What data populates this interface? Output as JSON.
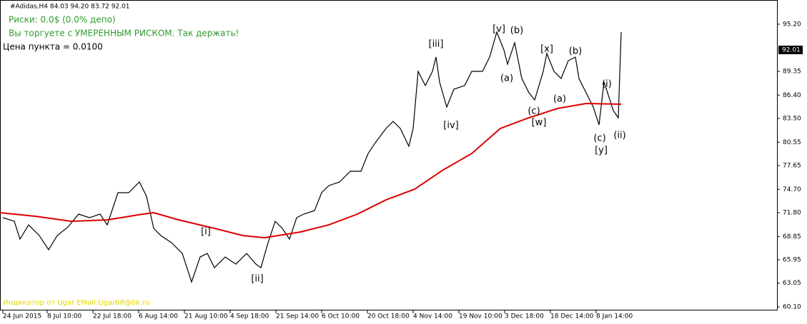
{
  "chart_data": {
    "type": "line",
    "title": "#Adidas,H4  84.03 94.20 83.72 92.01",
    "info_lines": [
      "Риски: 0.0$ (0.0% депо)",
      "Вы торгуете с УМЕРЕННЫМ РИСКОМ. Так держать!"
    ],
    "point_value_text": "Цена пункта = 0.0100",
    "footer_text": "Индикатор от Ugar EMail:Ugar68@bk.ru",
    "current_price": {
      "value": 92.01,
      "label": "92.01"
    },
    "annotations": [
      "[i]",
      "[ii]",
      "[iii]",
      "[iv]",
      "[v]",
      "(b)",
      "(a)",
      "(c)",
      "[w]",
      "[x]",
      "(a)",
      "(b)",
      "(c)",
      "[y]",
      "(i)",
      "(ii)"
    ],
    "xlim": [
      0,
      271.75
    ],
    "ylim": [
      59.66,
      98.21
    ],
    "xticks": [
      {
        "value": 1,
        "label": "24 Jun 2015"
      },
      {
        "value": 16.5,
        "label": "8 Jul 10:00"
      },
      {
        "value": 32.5,
        "label": "22 Jul 18:00"
      },
      {
        "value": 48.5,
        "label": "6 Aug 14:00"
      },
      {
        "value": 64.5,
        "label": "21 Aug 10:00"
      },
      {
        "value": 80.5,
        "label": "4 Sep 18:00"
      },
      {
        "value": 96.5,
        "label": "21 Sep 14:00"
      },
      {
        "value": 112.5,
        "label": "6 Oct 10:00"
      },
      {
        "value": 128.5,
        "label": "20 Oct 18:00"
      },
      {
        "value": 144.5,
        "label": "4 Nov 14:00"
      },
      {
        "value": 160.5,
        "label": "19 Nov 10:00"
      },
      {
        "value": 176.5,
        "label": "3 Dec 18:00"
      },
      {
        "value": 192.5,
        "label": "18 Dec 14:00"
      },
      {
        "value": 208.5,
        "label": "8 Jan 14:00"
      }
    ],
    "yticks": [
      {
        "value": 95.2,
        "label": "95.20"
      },
      {
        "value": 89.35,
        "label": "89.35"
      },
      {
        "value": 86.4,
        "label": "86.40"
      },
      {
        "value": 83.5,
        "label": "83.50"
      },
      {
        "value": 80.55,
        "label": "80.55"
      },
      {
        "value": 77.65,
        "label": "77.65"
      },
      {
        "value": 74.7,
        "label": "74.70"
      },
      {
        "value": 71.8,
        "label": "71.80"
      },
      {
        "value": 68.85,
        "label": "68.85"
      },
      {
        "value": 65.95,
        "label": "65.95"
      },
      {
        "value": 63.05,
        "label": "63.05"
      },
      {
        "value": 60.1,
        "label": "60.10"
      }
    ],
    "series": [
      {
        "name": "Adidas",
        "color": "#000000",
        "x": [
          1,
          5,
          7,
          10,
          13.75,
          17,
          20,
          23.75,
          27.5,
          31.25,
          35,
          37.5,
          41.25,
          45,
          48.75,
          51.25,
          53.75,
          56.25,
          60,
          63.75,
          67,
          70,
          72.5,
          75,
          78.75,
          82.5,
          86.25,
          89.5,
          91.25,
          93.75,
          96.25,
          98.75,
          101.25,
          103.75,
          106.25,
          110,
          112.5,
          115,
          118.75,
          122.5,
          126.25,
          128.75,
          131.25,
          135,
          137.5,
          140,
          143,
          144.5,
          146.25,
          148.75,
          151.25,
          152.5,
          153.75,
          156.25,
          158.75,
          162.5,
          165,
          168.75,
          171.25,
          173.75,
          176.25,
          177.5,
          180,
          182.5,
          185,
          187,
          190,
          191.25,
          193.75,
          196.25,
          198.75,
          201.25,
          202.5,
          205,
          207.5,
          209.5,
          211.25,
          212.5,
          214.5,
          216.25,
          217.25
        ],
        "values": [
          71.18,
          70.73,
          68.52,
          70.29,
          68.96,
          67.19,
          68.96,
          70.02,
          71.62,
          71.18,
          71.62,
          70.29,
          74.28,
          74.28,
          75.61,
          73.83,
          69.85,
          68.96,
          68.07,
          66.74,
          63.2,
          66.3,
          66.74,
          64.97,
          66.3,
          65.41,
          66.74,
          65.41,
          64.97,
          68.07,
          70.73,
          69.85,
          68.52,
          71.18,
          71.62,
          72.06,
          74.28,
          75.16,
          75.61,
          76.94,
          76.94,
          79.15,
          80.48,
          82.26,
          83.14,
          82.26,
          80.04,
          82.26,
          89.35,
          87.58,
          89.35,
          91.12,
          88.02,
          84.92,
          87.13,
          87.58,
          89.35,
          89.35,
          91.12,
          94.22,
          92.01,
          90.24,
          92.9,
          88.46,
          86.69,
          85.8,
          89.35,
          91.57,
          89.35,
          88.46,
          90.68,
          91.12,
          88.46,
          86.69,
          84.92,
          82.7,
          88.02,
          86.69,
          84.47,
          83.59,
          94.22
        ]
      },
      {
        "name": "MA",
        "color": "#dd0000",
        "x": [
          0,
          12.5,
          25,
          37.5,
          50,
          53.75,
          62.5,
          75,
          85,
          92.5,
          105,
          115,
          125,
          135,
          145,
          155,
          165,
          175,
          185,
          195,
          205,
          217.25
        ],
        "values": [
          71.8,
          71.35,
          70.73,
          70.91,
          71.62,
          71.8,
          70.91,
          69.85,
          68.96,
          68.69,
          69.4,
          70.29,
          71.62,
          73.39,
          74.72,
          77.11,
          79.15,
          82.26,
          83.59,
          84.74,
          85.36,
          85.27
        ]
      }
    ]
  }
}
